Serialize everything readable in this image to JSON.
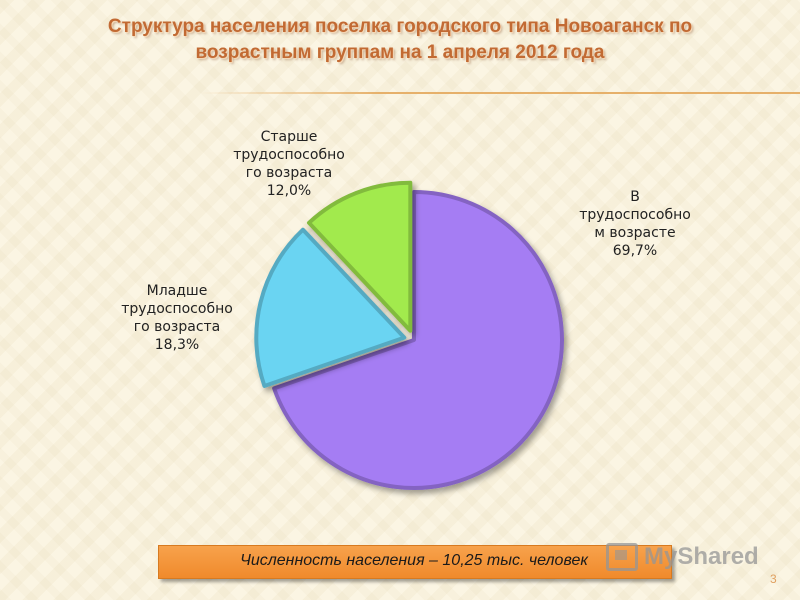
{
  "title": {
    "line1": "Структура населения поселка городского типа Новоаганск по",
    "line2": "возрастным группам на 1 апреля 2012 года"
  },
  "chart_data": {
    "type": "pie",
    "title": "Структура населения поселка городского типа Новоаганск по возрастным группам на 1 апреля 2012 года",
    "slices": [
      {
        "name": "В трудоспособном возрасте",
        "value": 69.7,
        "label_lines": [
          "В",
          "трудоспособно",
          "м возрасте",
          "69,7%"
        ],
        "color": "#a57df3",
        "exploded": false
      },
      {
        "name": "Младше трудоспособного возраста",
        "value": 18.3,
        "label_lines": [
          "Младше",
          "трудоспособно",
          "го возраста",
          "18,3%"
        ],
        "color": "#6ad4f2",
        "exploded": true
      },
      {
        "name": "Старше трудоспособного возраста",
        "value": 12.0,
        "label_lines": [
          "Старше",
          "трудоспособно",
          "го возраста",
          "12,0%"
        ],
        "color": "#a2ea4e",
        "exploded": true
      }
    ],
    "unit": "%",
    "legend": "none"
  },
  "footer": {
    "text": "Численность населения – 10,25 тыс. человек"
  },
  "watermark": {
    "text": "MyShared"
  },
  "page_number": "3",
  "colors": {
    "title": "#c26a33",
    "footer_bar": "#f39a3f"
  }
}
